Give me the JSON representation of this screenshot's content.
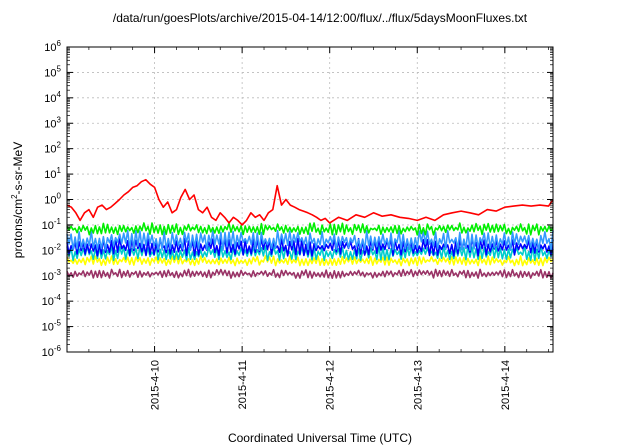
{
  "chart_data": {
    "type": "line",
    "title": "/data/run/goesPlots/archive/2015-04-14/12:00/flux/../flux/5daysMoonFluxes.txt",
    "xlabel": "Coordinated Universal Time (UTC)",
    "ylabel_parts": [
      "protons/cm",
      "2",
      "-s-sr-MeV"
    ],
    "y_scale": "log",
    "ylim_exp": [
      -6,
      6
    ],
    "y_ticks": [
      {
        "base": "10",
        "exp": "6"
      },
      {
        "base": "10",
        "exp": "5"
      },
      {
        "base": "10",
        "exp": "4"
      },
      {
        "base": "10",
        "exp": "3"
      },
      {
        "base": "10",
        "exp": "2"
      },
      {
        "base": "10",
        "exp": "1"
      },
      {
        "base": "10",
        "exp": "0"
      },
      {
        "base": "10",
        "exp": "-1"
      },
      {
        "base": "10",
        "exp": "-2"
      },
      {
        "base": "10",
        "exp": "-3"
      },
      {
        "base": "10",
        "exp": "-4"
      },
      {
        "base": "10",
        "exp": "-5"
      },
      {
        "base": "10",
        "exp": "-6"
      }
    ],
    "xlim": [
      9.0,
      14.55
    ],
    "x_ticks": [
      {
        "value": 10,
        "label": "2015-4-10"
      },
      {
        "value": 11,
        "label": "2015-4-11"
      },
      {
        "value": 12,
        "label": "2015-4-12"
      },
      {
        "value": 13,
        "label": "2015-4-13"
      },
      {
        "value": 14,
        "label": "2015-4-14"
      }
    ],
    "grid": true,
    "series": [
      {
        "color": "#ff0000",
        "x": [
          9.0,
          9.05,
          9.1,
          9.15,
          9.2,
          9.25,
          9.3,
          9.35,
          9.4,
          9.45,
          9.5,
          9.55,
          9.6,
          9.65,
          9.7,
          9.75,
          9.8,
          9.85,
          9.9,
          9.95,
          10.0,
          10.05,
          10.1,
          10.15,
          10.2,
          10.25,
          10.3,
          10.35,
          10.4,
          10.45,
          10.5,
          10.55,
          10.6,
          10.65,
          10.7,
          10.75,
          10.8,
          10.85,
          10.9,
          10.95,
          11.0,
          11.05,
          11.1,
          11.15,
          11.2,
          11.25,
          11.3,
          11.35,
          11.4,
          11.45,
          11.5,
          11.55,
          11.6,
          11.65,
          11.7,
          11.75,
          11.8,
          11.85,
          11.9,
          11.95,
          12.0,
          12.1,
          12.2,
          12.3,
          12.4,
          12.5,
          12.6,
          12.7,
          12.8,
          12.9,
          13.0,
          13.1,
          13.2,
          13.3,
          13.4,
          13.5,
          13.6,
          13.7,
          13.8,
          13.9,
          14.0,
          14.1,
          14.2,
          14.3,
          14.4,
          14.5,
          14.55
        ],
        "y": [
          0.6,
          0.5,
          0.3,
          0.15,
          0.3,
          0.4,
          0.2,
          0.5,
          0.6,
          0.4,
          0.5,
          0.7,
          1.0,
          1.5,
          2.0,
          3.0,
          3.5,
          5.0,
          6.0,
          4.0,
          3.0,
          1.0,
          0.5,
          0.8,
          0.3,
          0.4,
          1.2,
          2.5,
          1.0,
          1.5,
          0.4,
          0.3,
          0.5,
          0.2,
          0.15,
          0.3,
          0.2,
          0.12,
          0.2,
          0.15,
          0.1,
          0.15,
          0.3,
          0.2,
          0.25,
          0.15,
          0.3,
          0.4,
          3.5,
          0.6,
          1.0,
          0.6,
          0.5,
          0.4,
          0.35,
          0.3,
          0.25,
          0.2,
          0.15,
          0.18,
          0.12,
          0.2,
          0.15,
          0.25,
          0.2,
          0.3,
          0.22,
          0.25,
          0.2,
          0.18,
          0.15,
          0.2,
          0.15,
          0.25,
          0.3,
          0.35,
          0.3,
          0.25,
          0.4,
          0.35,
          0.5,
          0.55,
          0.6,
          0.55,
          0.6,
          0.55,
          1.0
        ]
      },
      {
        "color": "#00ee00",
        "band": [
          0.04,
          0.12
        ]
      },
      {
        "color": "#3399ff",
        "band": [
          0.01,
          0.06
        ]
      },
      {
        "color": "#0000ff",
        "band": [
          0.006,
          0.03
        ]
      },
      {
        "color": "#00cccc",
        "band": [
          0.004,
          0.015
        ]
      },
      {
        "color": "#ffff00",
        "band": [
          0.0025,
          0.006
        ]
      },
      {
        "color": "#993366",
        "band": [
          0.0008,
          0.0018
        ]
      }
    ]
  }
}
